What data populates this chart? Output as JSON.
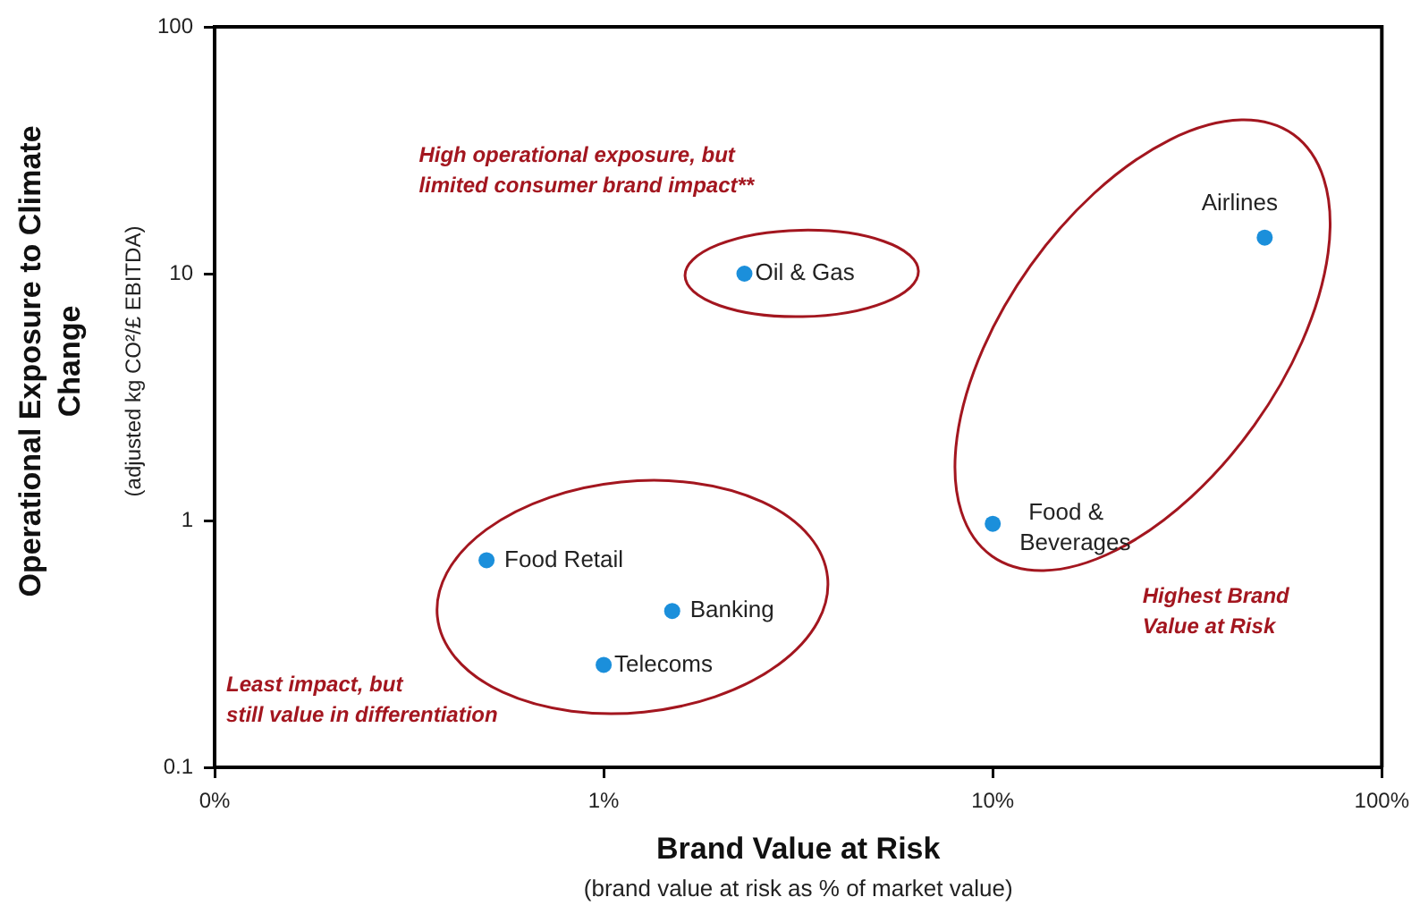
{
  "chart_data": {
    "type": "scatter",
    "xlabel": "Brand Value at Risk",
    "ylabel": "Operational Exposure to Climate Change",
    "log": "xy",
    "xlim": [
      0.1,
      100
    ],
    "xticks": [
      {
        "value": 0.1,
        "label": "0%"
      },
      {
        "value": 1,
        "label": "1%"
      },
      {
        "value": 10,
        "label": "10%"
      },
      {
        "value": 100,
        "label": "100%"
      }
    ],
    "ylim": [
      0.1,
      100
    ],
    "yticks": [
      0.1,
      1,
      10,
      100
    ],
    "grid": false,
    "legend": false,
    "marker": "circle",
    "series": [
      {
        "name": "Food Retail",
        "color": "#1b8fdb",
        "x": [
          0.5
        ],
        "values": [
          0.69
        ]
      },
      {
        "name": "Banking",
        "color": "#1b8fdb",
        "x": [
          1.5
        ],
        "values": [
          0.43
        ]
      },
      {
        "name": "Telecoms",
        "color": "#1b8fdb",
        "x": [
          1
        ],
        "values": [
          0.26
        ]
      },
      {
        "name": "Food & Beverages",
        "color": "#1b8fdb",
        "x": [
          10
        ],
        "values": [
          0.97
        ]
      },
      {
        "name": "Oil & Gas",
        "color": "#1b8fdb",
        "x": [
          2.3
        ],
        "values": [
          10
        ]
      },
      {
        "name": "Airlines",
        "color": "#1b8fdb",
        "x": [
          50
        ],
        "values": [
          14
        ]
      }
    ],
    "annotations": [
      "High operational exposure, but limited consumer brand impact**",
      "Least impact, but still value in differentiation",
      "Highest Brand Value at Risk",
      "(adjusted kg CO²/£ EBITDA)",
      "(brand value at risk as % of market value)"
    ]
  }
}
